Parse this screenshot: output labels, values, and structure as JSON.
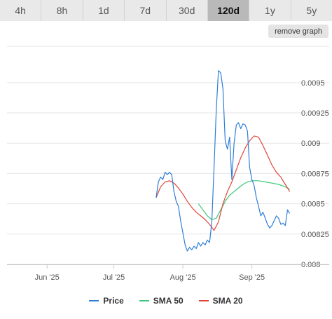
{
  "tabs": [
    {
      "label": "4h"
    },
    {
      "label": "8h"
    },
    {
      "label": "1d"
    },
    {
      "label": "7d"
    },
    {
      "label": "30d"
    },
    {
      "label": "120d",
      "active": true
    },
    {
      "label": "1y"
    },
    {
      "label": "5y"
    }
  ],
  "remove_graph_label": "remove graph",
  "colors": {
    "price": "#2f7ed8",
    "sma50": "#3cc67a",
    "sma20": "#e0473a"
  },
  "chart_data": {
    "type": "line",
    "title": "",
    "xlabel": "",
    "ylabel": "",
    "x_ticks": [
      "Jun '25",
      "Jul '25",
      "Aug '25",
      "Sep '25"
    ],
    "x_tick_dates": [
      "2025-06-01",
      "2025-07-01",
      "2025-08-01",
      "2025-09-01"
    ],
    "x_range": [
      "2025-05-14",
      "2025-09-20"
    ],
    "y_ticks": [
      "0.008",
      "0.00825",
      "0.0085",
      "0.00875",
      "0.009",
      "0.00925",
      "0.0095"
    ],
    "ylim": [
      0.008,
      0.0098
    ],
    "grid": true,
    "legend_position": "bottom",
    "series": [
      {
        "name": "Price",
        "color": "#2f7ed8",
        "points": [
          [
            "2025-07-20",
            0.00855
          ],
          [
            "2025-07-21",
            0.00868
          ],
          [
            "2025-07-22",
            0.00872
          ],
          [
            "2025-07-23",
            0.0087
          ],
          [
            "2025-07-24",
            0.00876
          ],
          [
            "2025-07-25",
            0.00874
          ],
          [
            "2025-07-26",
            0.00876
          ],
          [
            "2025-07-27",
            0.00874
          ],
          [
            "2025-07-28",
            0.0086
          ],
          [
            "2025-07-29",
            0.00852
          ],
          [
            "2025-07-30",
            0.00848
          ],
          [
            "2025-07-31",
            0.00836
          ],
          [
            "2025-08-01",
            0.00826
          ],
          [
            "2025-08-02",
            0.00816
          ],
          [
            "2025-08-03",
            0.00811
          ],
          [
            "2025-08-04",
            0.00814
          ],
          [
            "2025-08-05",
            0.00812
          ],
          [
            "2025-08-06",
            0.00815
          ],
          [
            "2025-08-07",
            0.00813
          ],
          [
            "2025-08-08",
            0.00818
          ],
          [
            "2025-08-09",
            0.00815
          ],
          [
            "2025-08-10",
            0.00818
          ],
          [
            "2025-08-11",
            0.00816
          ],
          [
            "2025-08-12",
            0.0082
          ],
          [
            "2025-08-13",
            0.00818
          ],
          [
            "2025-08-14",
            0.00835
          ],
          [
            "2025-08-15",
            0.0088
          ],
          [
            "2025-08-16",
            0.00928
          ],
          [
            "2025-08-17",
            0.0096
          ],
          [
            "2025-08-18",
            0.00958
          ],
          [
            "2025-08-19",
            0.00945
          ],
          [
            "2025-08-20",
            0.00902
          ],
          [
            "2025-08-21",
            0.00895
          ],
          [
            "2025-08-22",
            0.00905
          ],
          [
            "2025-08-23",
            0.0087
          ],
          [
            "2025-08-24",
            0.009
          ],
          [
            "2025-08-25",
            0.00915
          ],
          [
            "2025-08-26",
            0.00917
          ],
          [
            "2025-08-27",
            0.00912
          ],
          [
            "2025-08-28",
            0.00916
          ],
          [
            "2025-08-29",
            0.00915
          ],
          [
            "2025-08-30",
            0.0091
          ],
          [
            "2025-08-31",
            0.0088
          ],
          [
            "2025-09-01",
            0.0087
          ],
          [
            "2025-09-02",
            0.00865
          ],
          [
            "2025-09-03",
            0.00855
          ],
          [
            "2025-09-04",
            0.00848
          ],
          [
            "2025-09-05",
            0.0084
          ],
          [
            "2025-09-06",
            0.00843
          ],
          [
            "2025-09-07",
            0.00838
          ],
          [
            "2025-09-08",
            0.00833
          ],
          [
            "2025-09-09",
            0.0083
          ],
          [
            "2025-09-10",
            0.00832
          ],
          [
            "2025-09-11",
            0.00836
          ],
          [
            "2025-09-12",
            0.0084
          ],
          [
            "2025-09-13",
            0.00838
          ],
          [
            "2025-09-14",
            0.00833
          ],
          [
            "2025-09-15",
            0.00834
          ],
          [
            "2025-09-16",
            0.00832
          ],
          [
            "2025-09-17",
            0.00845
          ],
          [
            "2025-09-18",
            0.00842
          ]
        ]
      },
      {
        "name": "SMA 50",
        "color": "#3cc67a",
        "points": [
          [
            "2025-08-08",
            0.0085
          ],
          [
            "2025-08-10",
            0.00845
          ],
          [
            "2025-08-12",
            0.0084
          ],
          [
            "2025-08-14",
            0.00837
          ],
          [
            "2025-08-16",
            0.00838
          ],
          [
            "2025-08-18",
            0.00845
          ],
          [
            "2025-08-20",
            0.00852
          ],
          [
            "2025-08-22",
            0.00857
          ],
          [
            "2025-08-24",
            0.0086
          ],
          [
            "2025-08-26",
            0.00863
          ],
          [
            "2025-08-28",
            0.00866
          ],
          [
            "2025-08-30",
            0.00868
          ],
          [
            "2025-09-01",
            0.00869
          ],
          [
            "2025-09-04",
            0.00869
          ],
          [
            "2025-09-07",
            0.00868
          ],
          [
            "2025-09-10",
            0.00867
          ],
          [
            "2025-09-13",
            0.00866
          ],
          [
            "2025-09-16",
            0.00864
          ],
          [
            "2025-09-18",
            0.00862
          ]
        ]
      },
      {
        "name": "SMA 20",
        "color": "#e0473a",
        "points": [
          [
            "2025-07-20",
            0.00855
          ],
          [
            "2025-07-22",
            0.00864
          ],
          [
            "2025-07-24",
            0.00868
          ],
          [
            "2025-07-26",
            0.00869
          ],
          [
            "2025-07-28",
            0.00867
          ],
          [
            "2025-07-30",
            0.00863
          ],
          [
            "2025-08-01",
            0.00858
          ],
          [
            "2025-08-03",
            0.00852
          ],
          [
            "2025-08-05",
            0.00847
          ],
          [
            "2025-08-07",
            0.00843
          ],
          [
            "2025-08-09",
            0.0084
          ],
          [
            "2025-08-11",
            0.00837
          ],
          [
            "2025-08-13",
            0.00833
          ],
          [
            "2025-08-15",
            0.00828
          ],
          [
            "2025-08-17",
            0.00835
          ],
          [
            "2025-08-19",
            0.0085
          ],
          [
            "2025-08-21",
            0.0086
          ],
          [
            "2025-08-23",
            0.00868
          ],
          [
            "2025-08-25",
            0.00878
          ],
          [
            "2025-08-27",
            0.00888
          ],
          [
            "2025-08-29",
            0.00896
          ],
          [
            "2025-08-31",
            0.00902
          ],
          [
            "2025-09-02",
            0.00906
          ],
          [
            "2025-09-04",
            0.00905
          ],
          [
            "2025-09-06",
            0.00898
          ],
          [
            "2025-09-08",
            0.0089
          ],
          [
            "2025-09-10",
            0.00882
          ],
          [
            "2025-09-12",
            0.00876
          ],
          [
            "2025-09-14",
            0.00872
          ],
          [
            "2025-09-16",
            0.00866
          ],
          [
            "2025-09-18",
            0.0086
          ]
        ]
      }
    ]
  }
}
